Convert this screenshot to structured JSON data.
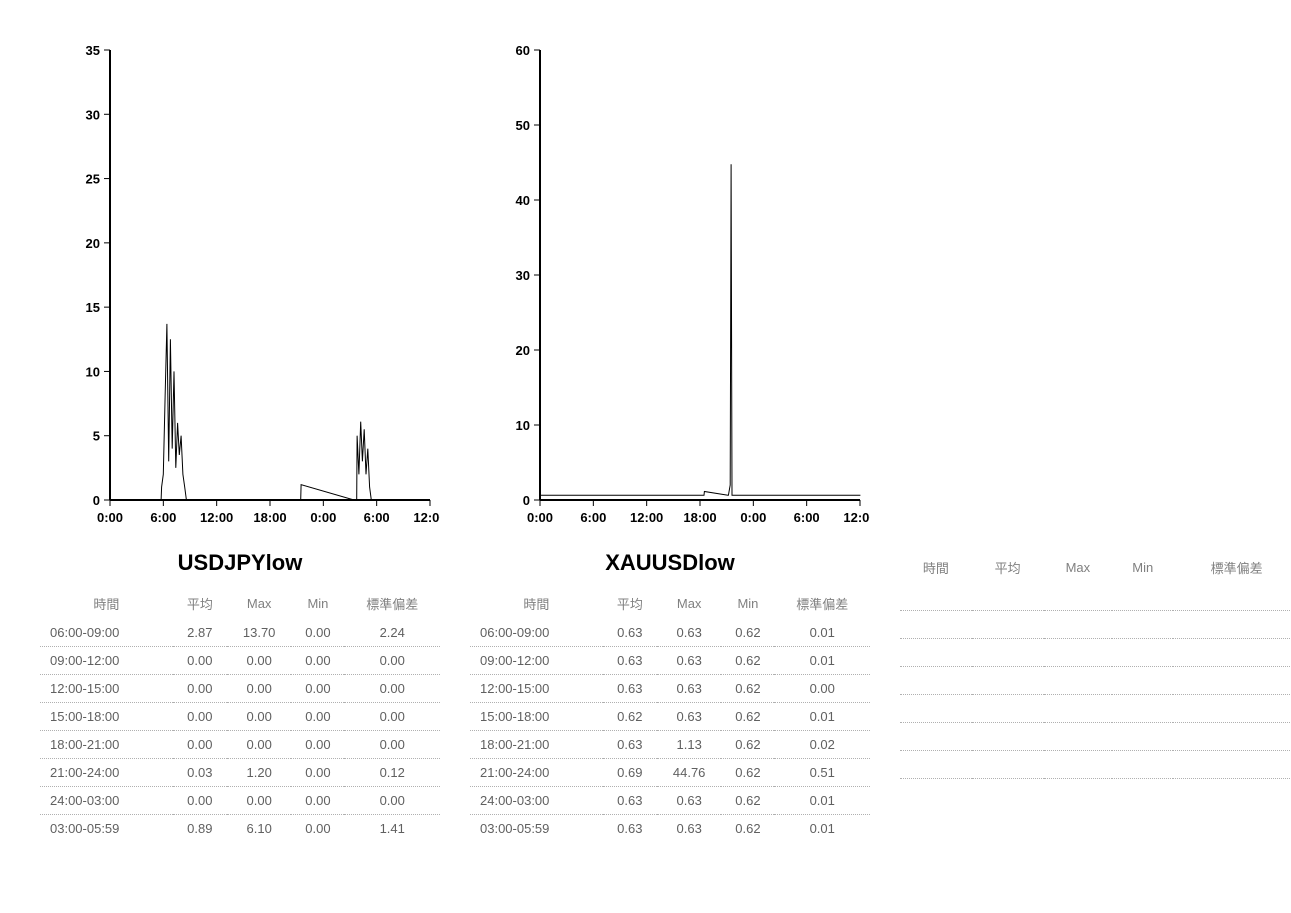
{
  "global": {
    "background_color": "#ffffff",
    "table_text_color": "#666666",
    "row_border_color": "#b0b0b0",
    "axis_color": "#000000",
    "title_fontsize": 22,
    "axis_label_fontsize": 13,
    "table_fontsize": 13
  },
  "columns": [
    {
      "title": "USDJPYlow",
      "chart": {
        "type": "line-spike",
        "ylim": [
          0,
          35
        ],
        "ytick_step": 5,
        "yticks": [
          0,
          5,
          10,
          15,
          20,
          25,
          30,
          35
        ],
        "x_labels": [
          "0:00",
          "6:00",
          "12:00",
          "18:00",
          "0:00",
          "6:00",
          "12:00"
        ],
        "x_range_hours": 36,
        "axis_color": "#000000",
        "series_color": "#000000",
        "line_width": 1,
        "series": [
          {
            "t": 5.8,
            "v": 1.0
          },
          {
            "t": 6.0,
            "v": 2.0
          },
          {
            "t": 6.2,
            "v": 8.0
          },
          {
            "t": 6.4,
            "v": 13.7
          },
          {
            "t": 6.6,
            "v": 3.0
          },
          {
            "t": 6.8,
            "v": 12.5
          },
          {
            "t": 7.0,
            "v": 4.0
          },
          {
            "t": 7.2,
            "v": 10.0
          },
          {
            "t": 7.4,
            "v": 2.5
          },
          {
            "t": 7.6,
            "v": 6.0
          },
          {
            "t": 7.8,
            "v": 3.5
          },
          {
            "t": 8.0,
            "v": 5.0
          },
          {
            "t": 8.2,
            "v": 2.0
          },
          {
            "t": 8.4,
            "v": 1.0
          },
          {
            "t": 8.6,
            "v": 0.0
          },
          {
            "t": 21.5,
            "v": 1.2
          },
          {
            "t": 27.5,
            "v": 0.0
          },
          {
            "t": 27.8,
            "v": 5.0
          },
          {
            "t": 28.0,
            "v": 2.0
          },
          {
            "t": 28.2,
            "v": 6.1
          },
          {
            "t": 28.4,
            "v": 3.0
          },
          {
            "t": 28.6,
            "v": 5.5
          },
          {
            "t": 28.8,
            "v": 2.0
          },
          {
            "t": 29.0,
            "v": 4.0
          },
          {
            "t": 29.2,
            "v": 1.0
          },
          {
            "t": 29.4,
            "v": 0.0
          }
        ]
      },
      "table": {
        "headers": [
          "時間",
          "平均",
          "Max",
          "Min",
          "標準偏差"
        ],
        "rows": [
          [
            "06:00-09:00",
            "2.87",
            "13.70",
            "0.00",
            "2.24"
          ],
          [
            "09:00-12:00",
            "0.00",
            "0.00",
            "0.00",
            "0.00"
          ],
          [
            "12:00-15:00",
            "0.00",
            "0.00",
            "0.00",
            "0.00"
          ],
          [
            "15:00-18:00",
            "0.00",
            "0.00",
            "0.00",
            "0.00"
          ],
          [
            "18:00-21:00",
            "0.00",
            "0.00",
            "0.00",
            "0.00"
          ],
          [
            "21:00-24:00",
            "0.03",
            "1.20",
            "0.00",
            "0.12"
          ],
          [
            "24:00-03:00",
            "0.00",
            "0.00",
            "0.00",
            "0.00"
          ],
          [
            "03:00-05:59",
            "0.89",
            "6.10",
            "0.00",
            "1.41"
          ]
        ]
      }
    },
    {
      "title": "XAUUSDlow",
      "chart": {
        "type": "line-spike",
        "ylim": [
          0,
          60
        ],
        "ytick_step": 10,
        "yticks": [
          0,
          10,
          20,
          30,
          40,
          50,
          60
        ],
        "x_labels": [
          "0:00",
          "6:00",
          "12:00",
          "18:00",
          "0:00",
          "6:00",
          "12:00"
        ],
        "x_range_hours": 36,
        "axis_color": "#000000",
        "series_color": "#000000",
        "line_width": 1,
        "baseline_value": 0.63,
        "series": [
          {
            "t": 0.0,
            "v": 0.63
          },
          {
            "t": 18.5,
            "v": 1.13
          },
          {
            "t": 21.2,
            "v": 0.63
          },
          {
            "t": 21.4,
            "v": 2.0
          },
          {
            "t": 21.5,
            "v": 44.76
          },
          {
            "t": 21.6,
            "v": 0.63
          },
          {
            "t": 36.0,
            "v": 0.63
          }
        ]
      },
      "table": {
        "headers": [
          "時間",
          "平均",
          "Max",
          "Min",
          "標準偏差"
        ],
        "rows": [
          [
            "06:00-09:00",
            "0.63",
            "0.63",
            "0.62",
            "0.01"
          ],
          [
            "09:00-12:00",
            "0.63",
            "0.63",
            "0.62",
            "0.01"
          ],
          [
            "12:00-15:00",
            "0.63",
            "0.63",
            "0.62",
            "0.00"
          ],
          [
            "15:00-18:00",
            "0.62",
            "0.63",
            "0.62",
            "0.01"
          ],
          [
            "18:00-21:00",
            "0.63",
            "1.13",
            "0.62",
            "0.02"
          ],
          [
            "21:00-24:00",
            "0.69",
            "44.76",
            "0.62",
            "0.51"
          ],
          [
            "24:00-03:00",
            "0.63",
            "0.63",
            "0.62",
            "0.01"
          ],
          [
            "03:00-05:59",
            "0.63",
            "0.63",
            "0.62",
            "0.01"
          ]
        ]
      }
    },
    {
      "title": "",
      "chart": null,
      "table": {
        "headers": [
          "時間",
          "平均",
          "Max",
          "Min",
          "標準偏差"
        ],
        "rows": [
          [
            "",
            "",
            "",
            "",
            ""
          ],
          [
            "",
            "",
            "",
            "",
            ""
          ],
          [
            "",
            "",
            "",
            "",
            ""
          ],
          [
            "",
            "",
            "",
            "",
            ""
          ],
          [
            "",
            "",
            "",
            "",
            ""
          ],
          [
            "",
            "",
            "",
            "",
            ""
          ],
          [
            "",
            "",
            "",
            "",
            ""
          ],
          [
            "",
            "",
            "",
            "",
            ""
          ]
        ]
      }
    }
  ]
}
